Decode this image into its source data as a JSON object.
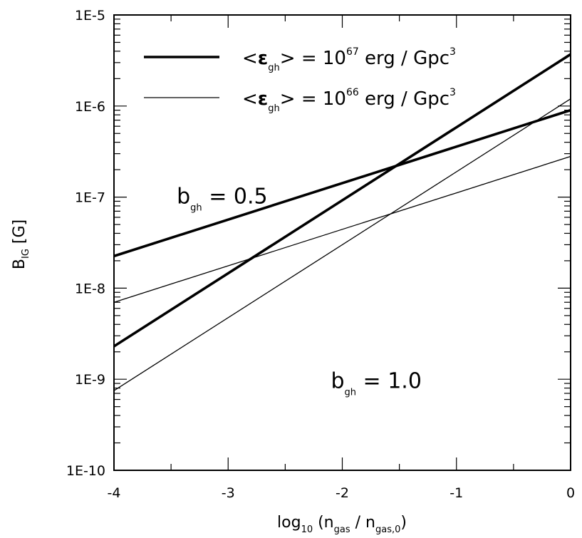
{
  "chart_data": {
    "type": "line",
    "x_scale": "linear",
    "y_scale": "log",
    "xlim": [
      -4,
      0
    ],
    "ylim": [
      1e-10,
      1e-05
    ],
    "xlabel": {
      "main": "log",
      "main_sub": "10",
      "open": " (n",
      "num_sub": "gas",
      "mid": " / n",
      "den_sub": "gas,0",
      "close": ")"
    },
    "ylabel": {
      "main": "B",
      "sub": "IG",
      "unit": " [G]"
    },
    "x_ticks": [
      {
        "value": -4,
        "label": "-4"
      },
      {
        "value": -3,
        "label": "-3"
      },
      {
        "value": -2,
        "label": "-2"
      },
      {
        "value": -1,
        "label": "-1"
      },
      {
        "value": 0,
        "label": "0"
      }
    ],
    "y_ticks": [
      {
        "value": 1e-10,
        "label": "1E-10"
      },
      {
        "value": 1e-09,
        "label": "1E-9"
      },
      {
        "value": 1e-08,
        "label": "1E-8"
      },
      {
        "value": 1e-07,
        "label": "1E-7"
      },
      {
        "value": 1e-06,
        "label": "1E-6"
      },
      {
        "value": 1e-05,
        "label": "1E-5"
      }
    ],
    "legend": {
      "placement": "top-right",
      "entries": [
        {
          "lt": "<",
          "symbol": "ε",
          "sub": "gh",
          "mid": "> = 10",
          "exp": "67",
          "unit": " erg / Gpc",
          "unit_exp": "3",
          "weight": "thick"
        },
        {
          "lt": "<",
          "symbol": "ε",
          "sub": "gh",
          "mid": "> = 10",
          "exp": "66",
          "unit": " erg / Gpc",
          "unit_exp": "3",
          "weight": "thin"
        }
      ]
    },
    "annotations": [
      {
        "main": "b",
        "sub": "gh",
        "rest": " = 0.5",
        "x": -3.45,
        "y": 8.5e-08
      },
      {
        "main": "b",
        "sub": "gh",
        "rest": " = 1.0",
        "x": -2.1,
        "y": 8e-10
      }
    ],
    "series": [
      {
        "weight": "thick",
        "x": [
          -4,
          0
        ],
        "y": [
          2.25e-08,
          9e-07
        ]
      },
      {
        "weight": "thick",
        "x": [
          -4,
          0
        ],
        "y": [
          2.3e-09,
          3.7e-06
        ]
      },
      {
        "weight": "thin",
        "x": [
          -4,
          0
        ],
        "y": [
          7e-09,
          2.8e-07
        ]
      },
      {
        "weight": "thin",
        "x": [
          -4,
          0
        ],
        "y": [
          7.5e-10,
          1.2e-06
        ]
      }
    ],
    "colors": {
      "line": "#000000",
      "background": "#ffffff"
    }
  }
}
